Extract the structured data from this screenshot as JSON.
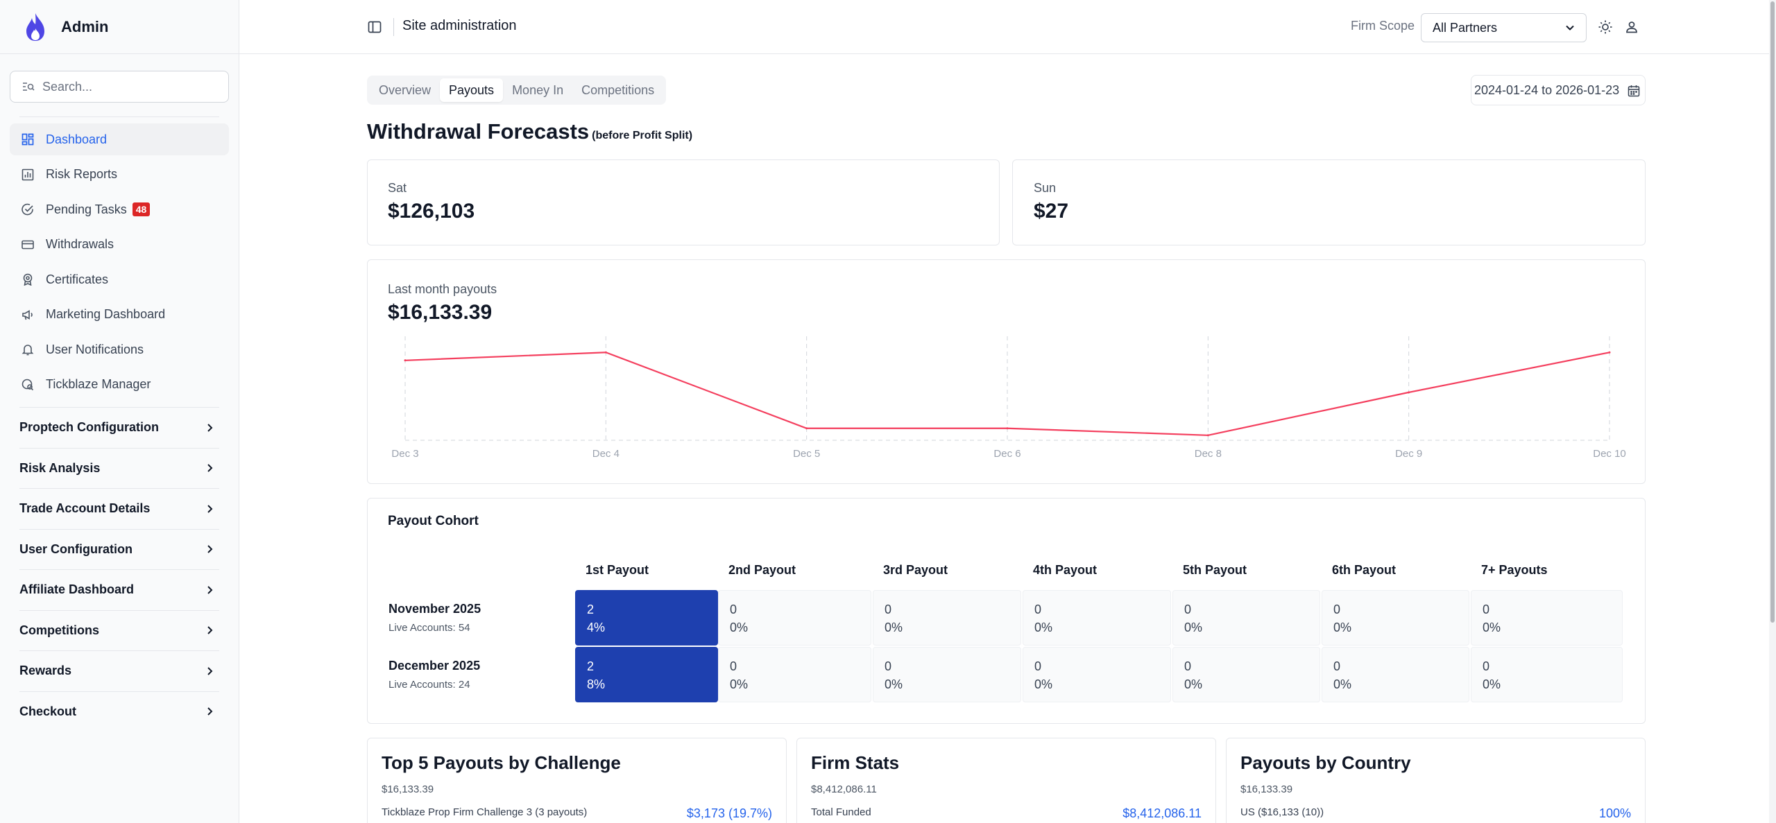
{
  "sidebar": {
    "brand": "Admin",
    "search_placeholder": "Search...",
    "items": [
      {
        "label": "Dashboard",
        "icon": "dashboard-icon",
        "active": true
      },
      {
        "label": "Risk Reports",
        "icon": "chart-icon"
      },
      {
        "label": "Pending Tasks",
        "icon": "check-circle-icon",
        "badge": "48"
      },
      {
        "label": "Withdrawals",
        "icon": "credit-card-icon"
      },
      {
        "label": "Certificates",
        "icon": "award-icon"
      },
      {
        "label": "Marketing Dashboard",
        "icon": "megaphone-icon"
      },
      {
        "label": "User Notifications",
        "icon": "bell-icon"
      },
      {
        "label": "Tickblaze Manager",
        "icon": "settings-search-icon"
      }
    ],
    "groups": [
      "Proptech Configuration",
      "Risk Analysis",
      "Trade Account Details",
      "User Configuration",
      "Affiliate Dashboard",
      "Competitions",
      "Rewards",
      "Checkout"
    ]
  },
  "topbar": {
    "title": "Site administration",
    "scope_label": "Firm Scope",
    "scope_value": "All Partners"
  },
  "tabs": [
    "Overview",
    "Payouts",
    "Money In",
    "Competitions"
  ],
  "active_tab": "Payouts",
  "date_range": "2024-01-24 to 2026-01-23",
  "forecast": {
    "title": "Withdrawal Forecasts",
    "subtitle": "(before Profit Split)",
    "cards": [
      {
        "label": "Sat",
        "value": "$126,103"
      },
      {
        "label": "Sun",
        "value": "$27"
      }
    ]
  },
  "last_month": {
    "label": "Last month payouts",
    "value": "$16,133.39"
  },
  "chart_data": {
    "type": "line",
    "x": [
      "Dec 3",
      "Dec 4",
      "Dec 5",
      "Dec 6",
      "Dec 8",
      "Dec 9",
      "Dec 10"
    ],
    "series": [
      {
        "values": [
          4000,
          4400,
          600,
          600,
          250,
          2400,
          4400
        ],
        "color": "#f43f5e"
      }
    ],
    "ylim": [
      0,
      5000
    ],
    "grid": "vertical-dashed",
    "title": "",
    "xlabel": "",
    "ylabel": ""
  },
  "cohort": {
    "title": "Payout Cohort",
    "columns": [
      "1st Payout",
      "2nd Payout",
      "3rd Payout",
      "4th Payout",
      "5th Payout",
      "6th Payout",
      "7+ Payouts"
    ],
    "rows": [
      {
        "month": "November 2025",
        "sub": "Live Accounts: 54",
        "cells": [
          [
            "2",
            "4%"
          ],
          [
            "0",
            "0%"
          ],
          [
            "0",
            "0%"
          ],
          [
            "0",
            "0%"
          ],
          [
            "0",
            "0%"
          ],
          [
            "0",
            "0%"
          ],
          [
            "0",
            "0%"
          ]
        ]
      },
      {
        "month": "December 2025",
        "sub": "Live Accounts: 24",
        "cells": [
          [
            "2",
            "8%"
          ],
          [
            "0",
            "0%"
          ],
          [
            "0",
            "0%"
          ],
          [
            "0",
            "0%"
          ],
          [
            "0",
            "0%"
          ],
          [
            "0",
            "0%"
          ],
          [
            "0",
            "0%"
          ]
        ]
      }
    ],
    "highlight_color": "#1e40af"
  },
  "bottom_cards": [
    {
      "title": "Top 5 Payouts by Challenge",
      "sub": "$16,133.39",
      "row_label": "Tickblaze Prop Firm Challenge 3 (3 payouts)",
      "row_value": "$3,173 (19.7%)"
    },
    {
      "title": "Firm Stats",
      "sub": "$8,412,086.11",
      "row_label": "Total Funded",
      "row_value": "$8,412,086.11"
    },
    {
      "title": "Payouts by Country",
      "sub": "$16,133.39",
      "row_label": "US ($16,133 (10))",
      "row_value": "100%"
    }
  ]
}
